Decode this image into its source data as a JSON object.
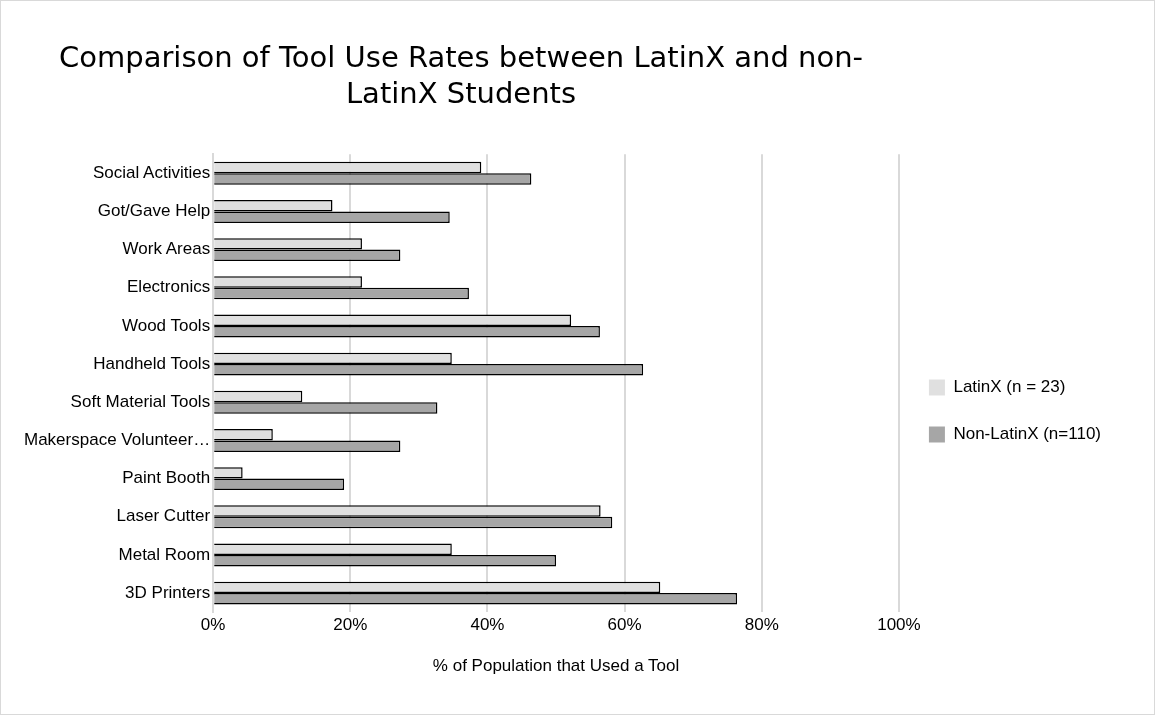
{
  "chart_data": {
    "type": "bar",
    "orientation": "horizontal",
    "title": "Comparison of Tool Use Rates between LatinX and non-LatinX Students",
    "xlabel": "% of Population that Used a Tool",
    "categories": [
      "Social Activities",
      "Got/Gave Help",
      "Work Areas",
      "Electronics",
      "Wood Tools",
      "Handheld Tools",
      "Soft Material Tools",
      "Makerspace Volunteer…",
      "Paint Booth",
      "Laser Cutter",
      "Metal Room",
      "3D Printers"
    ],
    "series": [
      {
        "name": "LatinX (n = 23)",
        "color": "#e0e0e0",
        "values": [
          39.1,
          17.4,
          21.7,
          21.7,
          52.2,
          34.8,
          13.0,
          8.7,
          4.3,
          56.5,
          34.8,
          65.2
        ]
      },
      {
        "name": "Non-LatinX (n=110)",
        "color": "#a6a6a6",
        "values": [
          46.4,
          34.5,
          27.3,
          37.3,
          56.4,
          62.7,
          32.7,
          27.3,
          19.1,
          58.2,
          50.0,
          76.4
        ]
      }
    ],
    "xlim": [
      0,
      100
    ],
    "xticks": [
      {
        "value": 0,
        "label": "0%"
      },
      {
        "value": 20,
        "label": "20%"
      },
      {
        "value": 40,
        "label": "40%"
      },
      {
        "value": 60,
        "label": "60%"
      },
      {
        "value": 80,
        "label": "80%"
      },
      {
        "value": 100,
        "label": "100%"
      }
    ],
    "grid": "x",
    "legend": "right"
  }
}
